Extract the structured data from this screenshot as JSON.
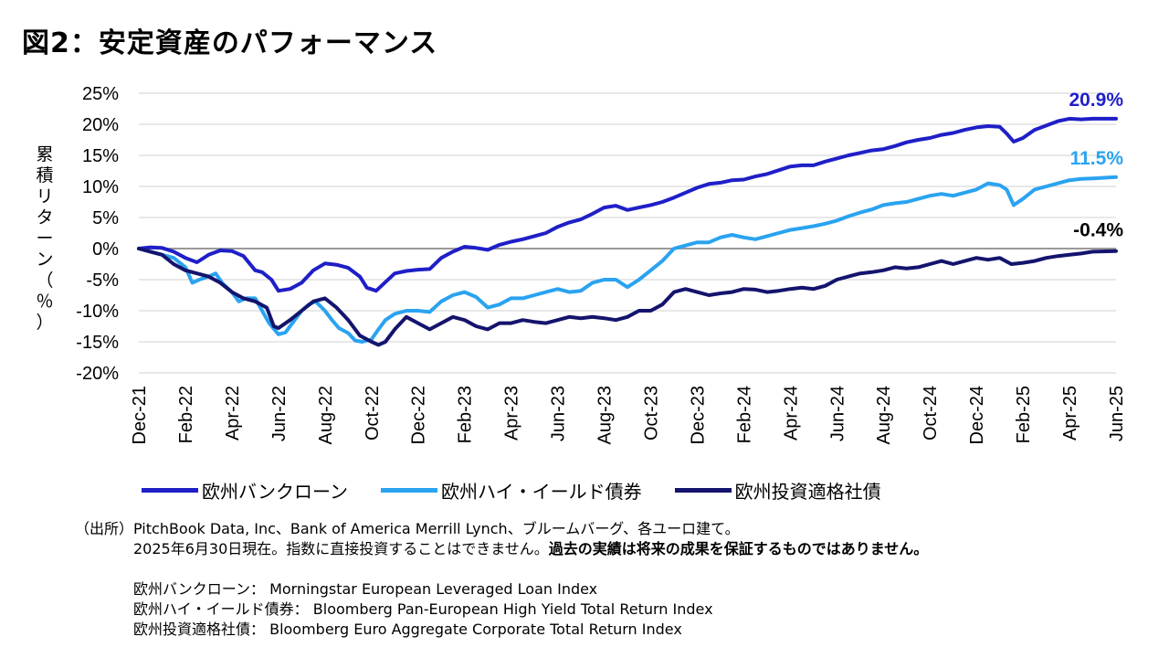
{
  "title": "図2：安定資産のパフォーマンス",
  "chart_data": {
    "type": "line",
    "ylabel": "累積リターン（％）",
    "ylabel_chars": [
      "累",
      "積",
      "リ",
      "タ",
      "ー",
      "ン",
      "（",
      "％",
      "）"
    ],
    "ylim": [
      -20,
      25
    ],
    "yticks": [
      25,
      20,
      15,
      10,
      5,
      0,
      -5,
      -10,
      -15,
      -20
    ],
    "ytick_labels": [
      "25%",
      "20%",
      "15%",
      "10%",
      "5%",
      "0%",
      "-5%",
      "-10%",
      "-15%",
      "-20%"
    ],
    "xtick_labels": [
      "Dec-21",
      "Feb-22",
      "Apr-22",
      "Jun-22",
      "Aug-22",
      "Oct-22",
      "Dec-22",
      "Feb-23",
      "Apr-23",
      "Jun-23",
      "Aug-23",
      "Oct-23",
      "Dec-23",
      "Feb-24",
      "Apr-24",
      "Jun-24",
      "Aug-24",
      "Oct-24",
      "Dec-24",
      "Feb-25",
      "Apr-25",
      "Jun-25"
    ],
    "x_range_months": [
      0,
      42
    ],
    "series": [
      {
        "name": "欧州バンクローン",
        "color": "#1f1fc8",
        "end_label": "20.9%",
        "points": [
          [
            0,
            0
          ],
          [
            0.5,
            0.2
          ],
          [
            1,
            0.1
          ],
          [
            1.5,
            -0.5
          ],
          [
            2,
            -1.5
          ],
          [
            2.5,
            -2.2
          ],
          [
            3,
            -1
          ],
          [
            3.5,
            -0.3
          ],
          [
            4,
            -0.4
          ],
          [
            4.5,
            -1.2
          ],
          [
            5,
            -3.5
          ],
          [
            5.3,
            -3.8
          ],
          [
            5.7,
            -5
          ],
          [
            6,
            -6.8
          ],
          [
            6.5,
            -6.5
          ],
          [
            7,
            -5.5
          ],
          [
            7.5,
            -3.5
          ],
          [
            8,
            -2.4
          ],
          [
            8.5,
            -2.6
          ],
          [
            9,
            -3.1
          ],
          [
            9.5,
            -4.5
          ],
          [
            9.8,
            -6.3
          ],
          [
            10.2,
            -6.8
          ],
          [
            10.6,
            -5.4
          ],
          [
            11,
            -4
          ],
          [
            11.5,
            -3.6
          ],
          [
            12,
            -3.4
          ],
          [
            12.5,
            -3.3
          ],
          [
            13,
            -1.5
          ],
          [
            13.5,
            -0.5
          ],
          [
            14,
            0.3
          ],
          [
            14.5,
            0.1
          ],
          [
            15,
            -0.2
          ],
          [
            15.5,
            0.6
          ],
          [
            16,
            1.1
          ],
          [
            16.5,
            1.5
          ],
          [
            17,
            2
          ],
          [
            17.5,
            2.5
          ],
          [
            18,
            3.5
          ],
          [
            18.5,
            4.2
          ],
          [
            19,
            4.7
          ],
          [
            19.5,
            5.6
          ],
          [
            20,
            6.6
          ],
          [
            20.5,
            6.9
          ],
          [
            21,
            6.2
          ],
          [
            21.5,
            6.6
          ],
          [
            22,
            7
          ],
          [
            22.5,
            7.5
          ],
          [
            23,
            8.2
          ],
          [
            23.5,
            9
          ],
          [
            24,
            9.8
          ],
          [
            24.5,
            10.4
          ],
          [
            25,
            10.6
          ],
          [
            25.5,
            11
          ],
          [
            26,
            11.1
          ],
          [
            26.5,
            11.6
          ],
          [
            27,
            12
          ],
          [
            27.5,
            12.6
          ],
          [
            28,
            13.2
          ],
          [
            28.5,
            13.4
          ],
          [
            29,
            13.4
          ],
          [
            29.5,
            14
          ],
          [
            30,
            14.5
          ],
          [
            30.5,
            15
          ],
          [
            31,
            15.4
          ],
          [
            31.5,
            15.8
          ],
          [
            32,
            16
          ],
          [
            32.5,
            16.5
          ],
          [
            33,
            17.1
          ],
          [
            33.5,
            17.5
          ],
          [
            34,
            17.8
          ],
          [
            34.5,
            18.3
          ],
          [
            35,
            18.6
          ],
          [
            35.5,
            19.1
          ],
          [
            36,
            19.5
          ],
          [
            36.5,
            19.7
          ],
          [
            37,
            19.6
          ],
          [
            37.3,
            18.5
          ],
          [
            37.6,
            17.2
          ],
          [
            38,
            17.8
          ],
          [
            38.5,
            19.1
          ],
          [
            39,
            19.8
          ],
          [
            39.5,
            20.5
          ],
          [
            40,
            20.9
          ],
          [
            40.5,
            20.8
          ],
          [
            41,
            20.9
          ],
          [
            42,
            20.9
          ]
        ]
      },
      {
        "name": "欧州ハイ・イールド債券",
        "color": "#2aa3f0",
        "end_label": "11.5%",
        "points": [
          [
            0,
            0
          ],
          [
            0.5,
            -0.5
          ],
          [
            1,
            -1
          ],
          [
            1.5,
            -1.5
          ],
          [
            2,
            -3
          ],
          [
            2.3,
            -5.5
          ],
          [
            2.6,
            -5
          ],
          [
            3,
            -4.5
          ],
          [
            3.3,
            -4
          ],
          [
            3.6,
            -5.6
          ],
          [
            4,
            -7
          ],
          [
            4.3,
            -8.5
          ],
          [
            4.6,
            -8
          ],
          [
            5,
            -8
          ],
          [
            5.3,
            -10
          ],
          [
            5.6,
            -12
          ],
          [
            6,
            -13.8
          ],
          [
            6.3,
            -13.5
          ],
          [
            6.7,
            -11.5
          ],
          [
            7,
            -10
          ],
          [
            7.3,
            -9
          ],
          [
            7.6,
            -8.5
          ],
          [
            8,
            -10
          ],
          [
            8.3,
            -11.5
          ],
          [
            8.6,
            -12.8
          ],
          [
            9,
            -13.6
          ],
          [
            9.3,
            -14.8
          ],
          [
            9.6,
            -15
          ],
          [
            10,
            -14.6
          ],
          [
            10.3,
            -13
          ],
          [
            10.6,
            -11.5
          ],
          [
            11,
            -10.5
          ],
          [
            11.5,
            -10
          ],
          [
            12,
            -10
          ],
          [
            12.5,
            -10.2
          ],
          [
            13,
            -8.5
          ],
          [
            13.5,
            -7.5
          ],
          [
            14,
            -7
          ],
          [
            14.5,
            -7.8
          ],
          [
            15,
            -9.5
          ],
          [
            15.5,
            -9
          ],
          [
            16,
            -8
          ],
          [
            16.5,
            -8
          ],
          [
            17,
            -7.5
          ],
          [
            17.5,
            -7
          ],
          [
            18,
            -6.5
          ],
          [
            18.5,
            -7
          ],
          [
            19,
            -6.8
          ],
          [
            19.5,
            -5.5
          ],
          [
            20,
            -5
          ],
          [
            20.5,
            -5
          ],
          [
            21,
            -6.2
          ],
          [
            21.5,
            -5
          ],
          [
            22,
            -3.5
          ],
          [
            22.5,
            -2
          ],
          [
            23,
            0
          ],
          [
            23.5,
            0.5
          ],
          [
            24,
            1
          ],
          [
            24.5,
            1
          ],
          [
            25,
            1.8
          ],
          [
            25.5,
            2.2
          ],
          [
            26,
            1.8
          ],
          [
            26.5,
            1.5
          ],
          [
            27,
            2
          ],
          [
            27.5,
            2.5
          ],
          [
            28,
            3
          ],
          [
            28.5,
            3.3
          ],
          [
            29,
            3.6
          ],
          [
            29.5,
            4
          ],
          [
            30,
            4.5
          ],
          [
            30.5,
            5.2
          ],
          [
            31,
            5.8
          ],
          [
            31.5,
            6.3
          ],
          [
            32,
            7
          ],
          [
            32.5,
            7.3
          ],
          [
            33,
            7.5
          ],
          [
            33.5,
            8
          ],
          [
            34,
            8.5
          ],
          [
            34.5,
            8.8
          ],
          [
            35,
            8.5
          ],
          [
            35.5,
            9
          ],
          [
            36,
            9.5
          ],
          [
            36.5,
            10.5
          ],
          [
            37,
            10.2
          ],
          [
            37.3,
            9.5
          ],
          [
            37.6,
            7
          ],
          [
            38,
            8
          ],
          [
            38.5,
            9.5
          ],
          [
            39,
            10
          ],
          [
            39.5,
            10.5
          ],
          [
            40,
            11
          ],
          [
            40.5,
            11.2
          ],
          [
            41,
            11.3
          ],
          [
            42,
            11.5
          ]
        ]
      },
      {
        "name": "欧州投資適格社債",
        "color": "#14146e",
        "end_label": "-0.4%",
        "points": [
          [
            0,
            0
          ],
          [
            0.5,
            -0.5
          ],
          [
            1,
            -1
          ],
          [
            1.5,
            -2.5
          ],
          [
            2,
            -3.5
          ],
          [
            2.5,
            -4
          ],
          [
            3,
            -4.5
          ],
          [
            3.5,
            -5.5
          ],
          [
            4,
            -7
          ],
          [
            4.5,
            -8
          ],
          [
            5,
            -8.5
          ],
          [
            5.5,
            -9.5
          ],
          [
            5.8,
            -12.5
          ],
          [
            6,
            -12.8
          ],
          [
            6.5,
            -11.5
          ],
          [
            7,
            -10
          ],
          [
            7.5,
            -8.5
          ],
          [
            8,
            -8
          ],
          [
            8.5,
            -9.5
          ],
          [
            9,
            -11.5
          ],
          [
            9.5,
            -14
          ],
          [
            10,
            -15
          ],
          [
            10.3,
            -15.5
          ],
          [
            10.6,
            -15
          ],
          [
            11,
            -13
          ],
          [
            11.5,
            -11
          ],
          [
            12,
            -12
          ],
          [
            12.5,
            -13
          ],
          [
            13,
            -12
          ],
          [
            13.5,
            -11
          ],
          [
            14,
            -11.5
          ],
          [
            14.5,
            -12.5
          ],
          [
            15,
            -13
          ],
          [
            15.5,
            -12
          ],
          [
            16,
            -12
          ],
          [
            16.5,
            -11.5
          ],
          [
            17,
            -11.8
          ],
          [
            17.5,
            -12
          ],
          [
            18,
            -11.5
          ],
          [
            18.5,
            -11
          ],
          [
            19,
            -11.2
          ],
          [
            19.5,
            -11
          ],
          [
            20,
            -11.2
          ],
          [
            20.5,
            -11.5
          ],
          [
            21,
            -11
          ],
          [
            21.5,
            -10
          ],
          [
            22,
            -10
          ],
          [
            22.5,
            -9
          ],
          [
            23,
            -7
          ],
          [
            23.5,
            -6.5
          ],
          [
            24,
            -7
          ],
          [
            24.5,
            -7.5
          ],
          [
            25,
            -7.2
          ],
          [
            25.5,
            -7
          ],
          [
            26,
            -6.5
          ],
          [
            26.5,
            -6.6
          ],
          [
            27,
            -7
          ],
          [
            27.5,
            -6.8
          ],
          [
            28,
            -6.5
          ],
          [
            28.5,
            -6.3
          ],
          [
            29,
            -6.5
          ],
          [
            29.5,
            -6
          ],
          [
            30,
            -5
          ],
          [
            30.5,
            -4.5
          ],
          [
            31,
            -4
          ],
          [
            31.5,
            -3.8
          ],
          [
            32,
            -3.5
          ],
          [
            32.5,
            -3
          ],
          [
            33,
            -3.2
          ],
          [
            33.5,
            -3
          ],
          [
            34,
            -2.5
          ],
          [
            34.5,
            -2
          ],
          [
            35,
            -2.5
          ],
          [
            35.5,
            -2
          ],
          [
            36,
            -1.5
          ],
          [
            36.5,
            -1.8
          ],
          [
            37,
            -1.5
          ],
          [
            37.5,
            -2.5
          ],
          [
            38,
            -2.3
          ],
          [
            38.5,
            -2
          ],
          [
            39,
            -1.5
          ],
          [
            39.5,
            -1.2
          ],
          [
            40,
            -1
          ],
          [
            40.5,
            -0.8
          ],
          [
            41,
            -0.5
          ],
          [
            42,
            -0.4
          ]
        ]
      }
    ]
  },
  "legend": {
    "items": [
      {
        "label": "欧州バンクローン",
        "color": "#1f1fc8"
      },
      {
        "label": "欧州ハイ・イールド債券",
        "color": "#2aa3f0"
      },
      {
        "label": "欧州投資適格社債",
        "color": "#14146e"
      }
    ]
  },
  "notes": {
    "source_label": "（出所）",
    "source_text": "PitchBook Data, Inc、Bank of America Merrill Lynch、ブルームバーグ、各ユーロ建て。",
    "date_text": "2025年6月30日現在。指数に直接投資することはできません。",
    "warning_text": "過去の実績は将来の成果を保証するものではありません。",
    "index_lines": [
      "欧州バンクローン： Morningstar European Leveraged Loan Index",
      "欧州ハイ・イールド債券： Bloomberg Pan-European High Yield Total Return Index",
      "欧州投資適格社債： Bloomberg Euro Aggregate Corporate Total Return Index"
    ]
  }
}
